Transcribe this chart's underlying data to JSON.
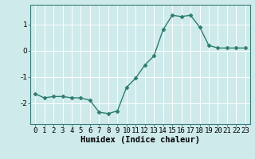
{
  "x": [
    0,
    1,
    2,
    3,
    4,
    5,
    6,
    7,
    8,
    9,
    10,
    11,
    12,
    13,
    14,
    15,
    16,
    17,
    18,
    19,
    20,
    21,
    22,
    23
  ],
  "y": [
    -1.65,
    -1.8,
    -1.75,
    -1.75,
    -1.8,
    -1.8,
    -1.9,
    -2.35,
    -2.4,
    -2.3,
    -1.4,
    -1.05,
    -0.55,
    -0.2,
    0.8,
    1.35,
    1.3,
    1.35,
    0.9,
    0.2,
    0.1,
    0.1,
    0.1,
    0.1
  ],
  "xlabel": "Humidex (Indice chaleur)",
  "xlim": [
    -0.5,
    23.5
  ],
  "ylim": [
    -2.8,
    1.75
  ],
  "yticks": [
    -2,
    -1,
    0,
    1
  ],
  "line_color": "#2d7d6e",
  "bg_color": "#ceeaea",
  "grid_color": "#b0d8d8",
  "marker": "D",
  "markersize": 2.5,
  "linewidth": 1.0,
  "xlabel_fontsize": 7.5,
  "tick_fontsize": 6.5
}
